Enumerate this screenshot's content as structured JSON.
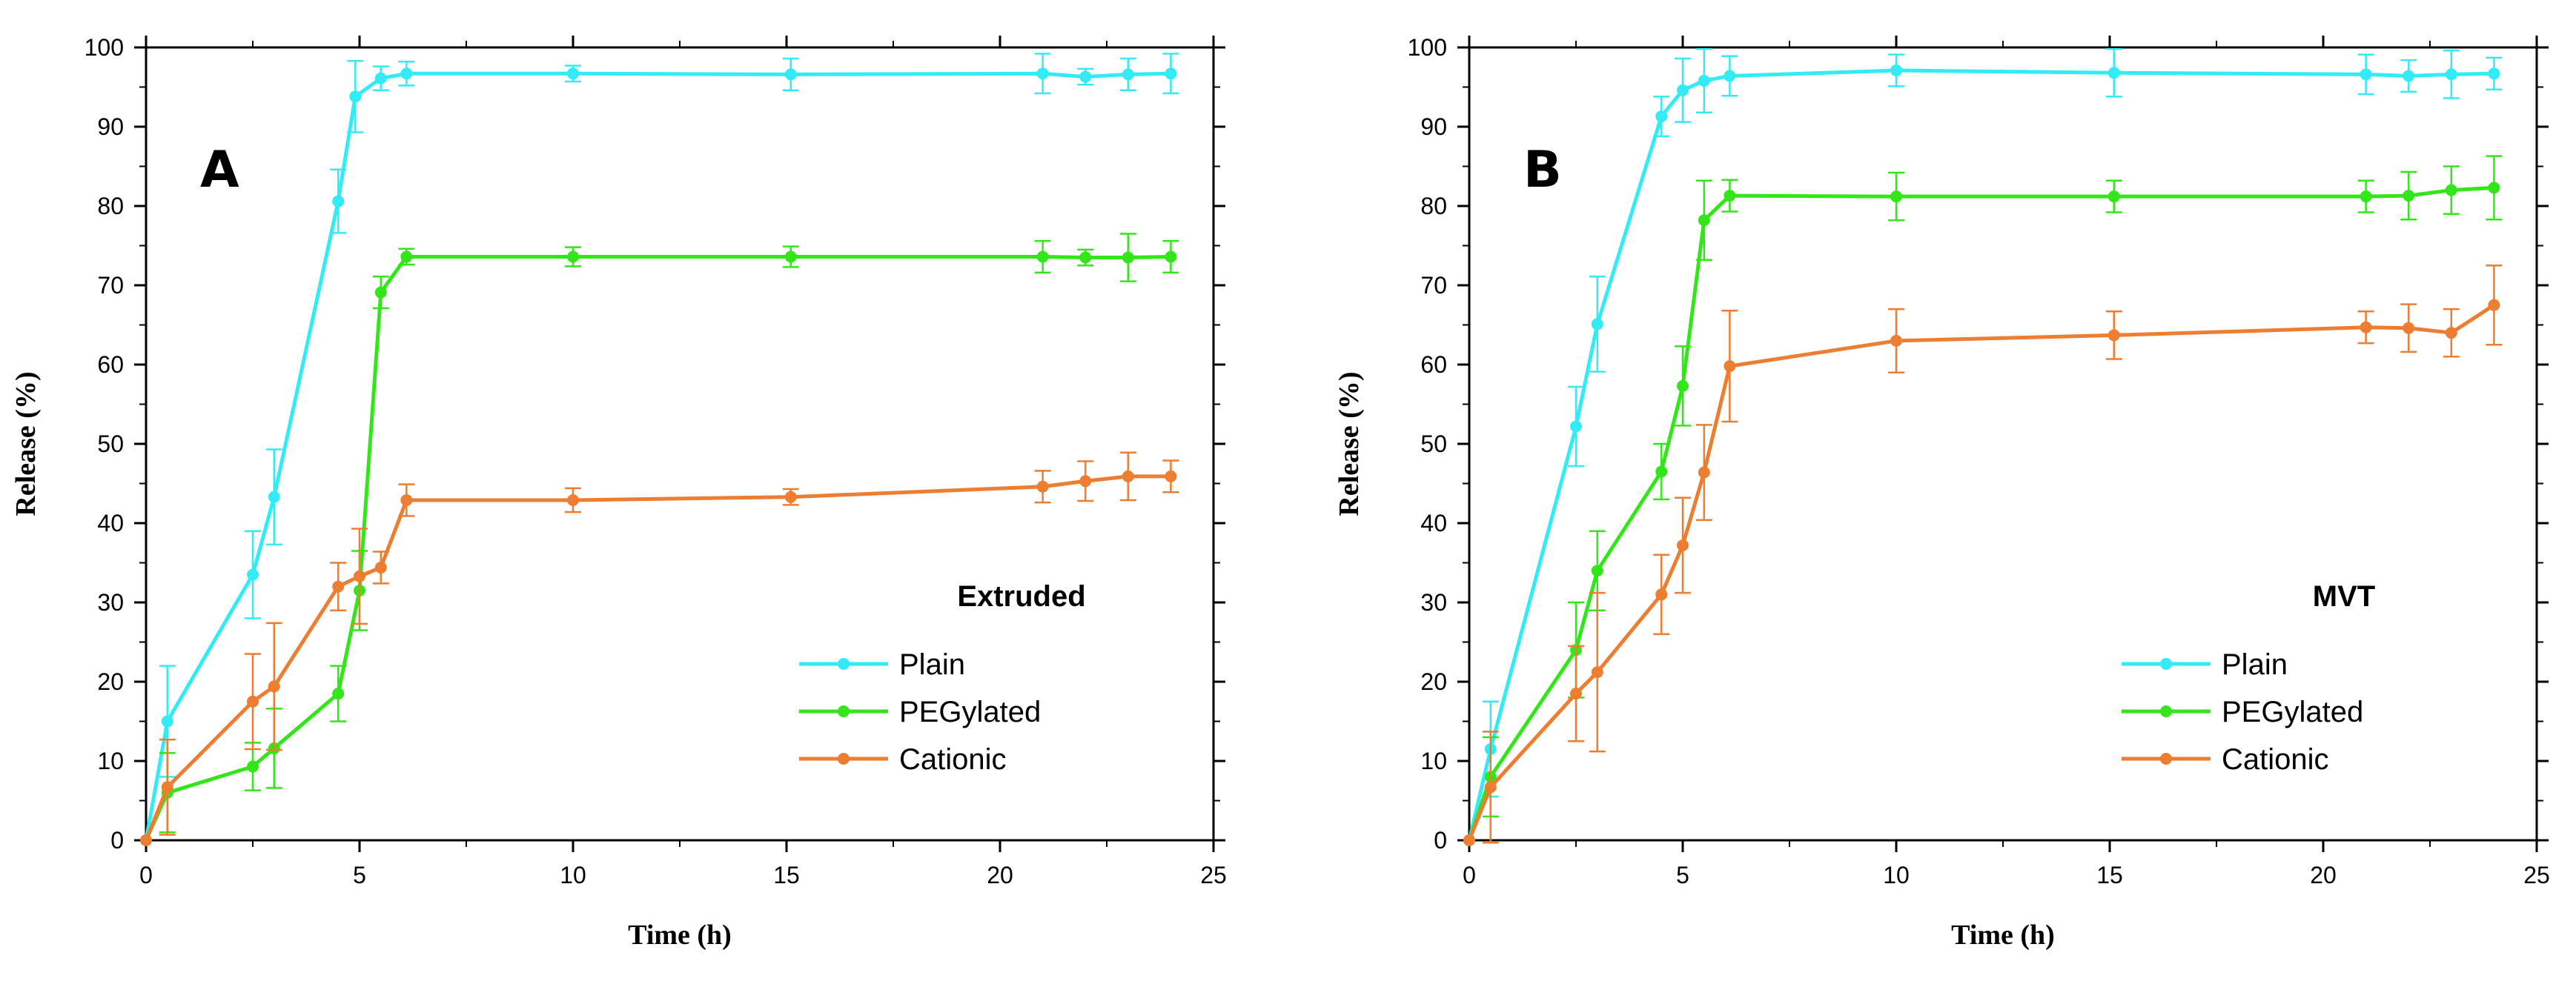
{
  "chart_data": [
    {
      "type": "line",
      "panel_label": "A",
      "legend_title": "Extruded",
      "xlabel": "Time (h)",
      "ylabel": "Release (%)",
      "xlim": [
        0,
        25
      ],
      "ylim": [
        0,
        100
      ],
      "xticks": [
        0,
        5,
        10,
        15,
        20,
        25
      ],
      "yticks": [
        0,
        10,
        20,
        30,
        40,
        50,
        60,
        70,
        80,
        90,
        100
      ],
      "legend_position": "bottom-right",
      "series": [
        {
          "name": "Plain",
          "color": "#33ebf5",
          "x": [
            0,
            0.5,
            2.5,
            3,
            4.5,
            4.9,
            5.5,
            6.1,
            10,
            15.1,
            21,
            22,
            23,
            24
          ],
          "y": [
            0,
            15,
            33.5,
            43.3,
            80.6,
            93.8,
            96.1,
            96.7,
            96.7,
            96.6,
            96.7,
            96.3,
            96.6,
            96.7
          ],
          "err": [
            0,
            7,
            5.5,
            6,
            4,
            4.5,
            1.5,
            1.5,
            1,
            2,
            2.5,
            1,
            2,
            2.5
          ]
        },
        {
          "name": "PEGylated",
          "color": "#33e61a",
          "x": [
            0,
            0.5,
            2.5,
            3,
            4.5,
            5,
            5.5,
            6.1,
            10,
            15.1,
            21,
            22,
            23,
            24
          ],
          "y": [
            0,
            6,
            9.3,
            11.6,
            18.5,
            31.5,
            69.1,
            73.6,
            73.6,
            73.6,
            73.6,
            73.5,
            73.5,
            73.6
          ],
          "err": [
            0,
            5,
            3,
            5,
            3.5,
            5,
            2,
            1,
            1.2,
            1.3,
            2,
            1,
            3,
            2
          ]
        },
        {
          "name": "Cationic",
          "color": "#ed7d31",
          "x": [
            0,
            0.5,
            2.5,
            3,
            4.5,
            5,
            5.5,
            6.1,
            10,
            15.1,
            21,
            22,
            23,
            24
          ],
          "y": [
            0,
            6.7,
            17.5,
            19.4,
            32,
            33.3,
            34.4,
            42.9,
            42.9,
            43.3,
            44.6,
            45.3,
            45.9,
            45.9
          ],
          "err": [
            0,
            6,
            6,
            8,
            3,
            6,
            2,
            2,
            1.5,
            1,
            2,
            2.5,
            3,
            2
          ]
        }
      ]
    },
    {
      "type": "line",
      "panel_label": "B",
      "legend_title": "MVT",
      "xlabel": "Time (h)",
      "ylabel": "Release (%)",
      "xlim": [
        0,
        25
      ],
      "ylim": [
        0,
        100
      ],
      "xticks": [
        0,
        5,
        10,
        15,
        20,
        25
      ],
      "yticks": [
        0,
        10,
        20,
        30,
        40,
        50,
        60,
        70,
        80,
        90,
        100
      ],
      "legend_position": "bottom-right",
      "series": [
        {
          "name": "Plain",
          "color": "#33ebf5",
          "x": [
            0,
            0.5,
            2.5,
            3,
            4.5,
            5,
            5.5,
            6.1,
            10,
            15.1,
            21,
            22,
            23,
            24
          ],
          "y": [
            0,
            11.5,
            52.2,
            65.1,
            91.3,
            94.6,
            95.8,
            96.4,
            97.1,
            96.8,
            96.6,
            96.4,
            96.6,
            96.7
          ],
          "err": [
            0,
            6,
            5,
            6,
            2.5,
            4,
            4,
            2.5,
            2,
            3,
            2.5,
            2,
            3,
            2
          ]
        },
        {
          "name": "PEGylated",
          "color": "#33e61a",
          "x": [
            0,
            0.5,
            2.5,
            3,
            4.5,
            5,
            5.5,
            6.1,
            10,
            15.1,
            21,
            22,
            23,
            24
          ],
          "y": [
            0,
            8,
            24,
            34,
            46.5,
            57.3,
            78.2,
            81.3,
            81.2,
            81.2,
            81.2,
            81.3,
            82,
            82.3
          ],
          "err": [
            0,
            5,
            6,
            5,
            3.5,
            5,
            5,
            2,
            3,
            2,
            2,
            3,
            3,
            4
          ]
        },
        {
          "name": "Cationic",
          "color": "#ed7d31",
          "x": [
            0,
            0.5,
            2.5,
            3,
            4.5,
            5,
            5.5,
            6.1,
            10,
            15.1,
            21,
            22,
            23,
            24
          ],
          "y": [
            0,
            6.7,
            18.5,
            21.2,
            31,
            37.2,
            46.4,
            59.8,
            63,
            63.7,
            64.7,
            64.6,
            64,
            67.5
          ],
          "err": [
            0,
            7,
            6,
            10,
            5,
            6,
            6,
            7,
            4,
            3,
            2,
            3,
            3,
            5
          ]
        }
      ]
    }
  ]
}
